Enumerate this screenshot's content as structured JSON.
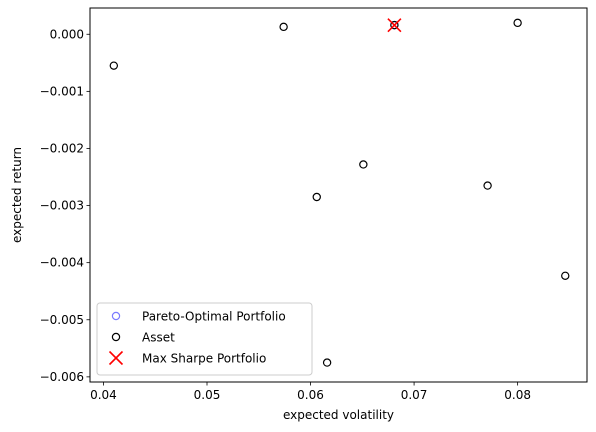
{
  "chart_data": {
    "type": "scatter",
    "xlabel": "expected volatility",
    "ylabel": "expected return",
    "xlim": [
      0.0387,
      0.0867
    ],
    "ylim": [
      -0.00609,
      0.00046
    ],
    "xticks": [
      0.04,
      0.05,
      0.06,
      0.07,
      0.08
    ],
    "xtick_labels": [
      "0.04",
      "0.05",
      "0.06",
      "0.07",
      "0.08"
    ],
    "yticks": [
      0.0,
      -0.001,
      -0.002,
      -0.003,
      -0.004,
      -0.005,
      -0.006
    ],
    "ytick_labels": [
      "0.000",
      "−0.001",
      "−0.002",
      "−0.003",
      "−0.004",
      "−0.005",
      "−0.006"
    ],
    "legend_position": "lower-left",
    "series": [
      {
        "name": "Pareto-Optimal Portfolio",
        "marker": "open-circle",
        "color": "#7b7bff",
        "points": [
          {
            "x": 0.0681,
            "y": 0.00016
          }
        ]
      },
      {
        "name": "Asset",
        "marker": "open-circle",
        "color": "#000000",
        "points": [
          {
            "x": 0.041,
            "y": -0.00055
          },
          {
            "x": 0.0574,
            "y": 0.00013
          },
          {
            "x": 0.0681,
            "y": 0.00016
          },
          {
            "x": 0.08,
            "y": 0.0002
          },
          {
            "x": 0.0651,
            "y": -0.00228
          },
          {
            "x": 0.0606,
            "y": -0.00285
          },
          {
            "x": 0.0771,
            "y": -0.00265
          },
          {
            "x": 0.0846,
            "y": -0.00423
          },
          {
            "x": 0.0616,
            "y": -0.00575
          }
        ]
      },
      {
        "name": "Max Sharpe Portfolio",
        "marker": "x",
        "color": "#ff0000",
        "points": [
          {
            "x": 0.0681,
            "y": 0.00016
          }
        ]
      }
    ]
  }
}
